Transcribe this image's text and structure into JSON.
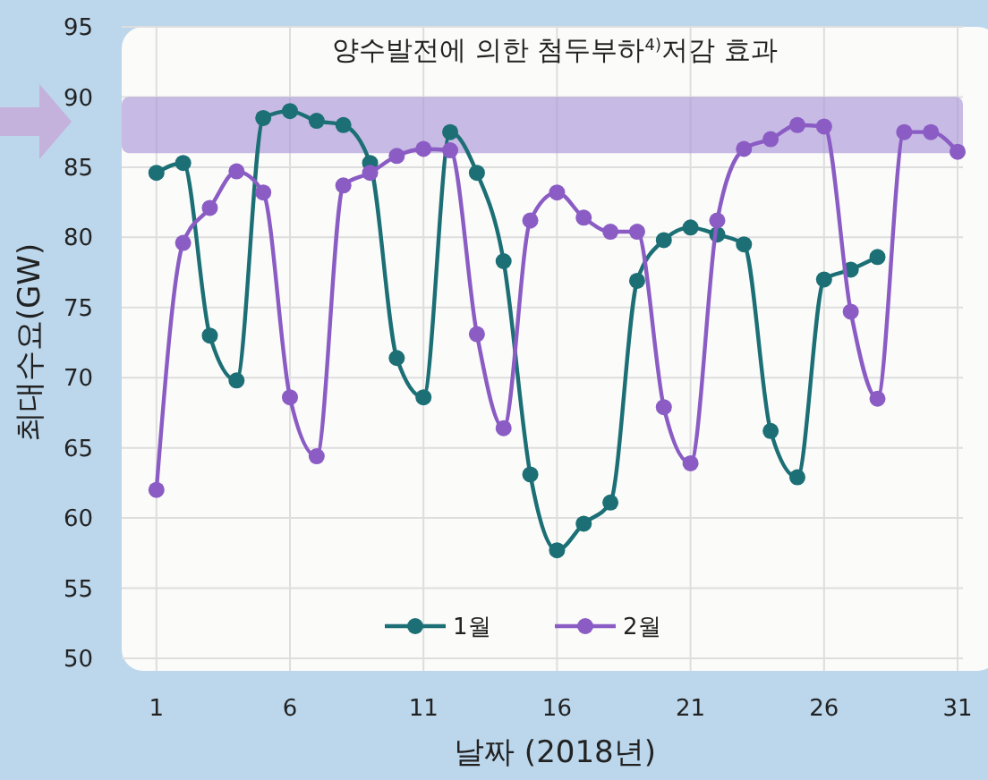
{
  "chart_data": {
    "type": "line",
    "title": "양수발전에 의한 첨두부하$^{4)}$저감 효과",
    "xlabel": "날짜 (2018년)",
    "ylabel": "최대수요(GW)",
    "x": [
      1,
      2,
      3,
      4,
      5,
      6,
      7,
      8,
      9,
      10,
      11,
      12,
      13,
      14,
      15,
      16,
      17,
      18,
      19,
      20,
      21,
      22,
      23,
      24,
      25,
      26,
      27,
      28,
      29,
      30,
      31
    ],
    "series": [
      {
        "name": "1월",
        "color": "#1b6f75",
        "x": [
          1,
          2,
          3,
          4,
          5,
          6,
          7,
          8,
          9,
          10,
          11,
          12,
          13,
          14,
          15,
          16,
          17,
          18,
          19,
          20,
          21,
          22,
          23,
          24,
          25,
          26,
          27,
          28
        ],
        "values": [
          84.6,
          85.3,
          73.0,
          69.8,
          88.5,
          89.0,
          88.3,
          88.0,
          85.3,
          71.4,
          68.6,
          87.5,
          84.6,
          78.3,
          63.1,
          57.7,
          59.6,
          61.1,
          76.9,
          79.8,
          80.7,
          80.2,
          79.5,
          66.2,
          62.9,
          77.0,
          77.7,
          78.6
        ]
      },
      {
        "name": "2월",
        "color": "#8a5cc4",
        "values": [
          62.0,
          79.6,
          82.1,
          84.7,
          83.2,
          68.6,
          64.4,
          83.7,
          84.6,
          85.8,
          86.3,
          86.2,
          73.1,
          66.4,
          81.2,
          83.2,
          81.4,
          80.4,
          80.4,
          67.9,
          63.9,
          81.2,
          86.3,
          87.0,
          88.0,
          87.9,
          74.7,
          68.5,
          87.5,
          87.5,
          86.1
        ]
      }
    ],
    "xlim": [
      -0.3,
      31.2
    ],
    "xticks": [
      1,
      6,
      11,
      16,
      21,
      26,
      31
    ],
    "ylim": [
      50,
      95
    ],
    "yticks": [
      50,
      55,
      60,
      65,
      70,
      75,
      80,
      85,
      90,
      95
    ],
    "bands": [
      {
        "axis": "y",
        "from": 86,
        "to": 90,
        "color": "#a58fd6"
      }
    ],
    "grid": true,
    "legend": "bottom",
    "marker": "circle",
    "line_style": "solid"
  }
}
